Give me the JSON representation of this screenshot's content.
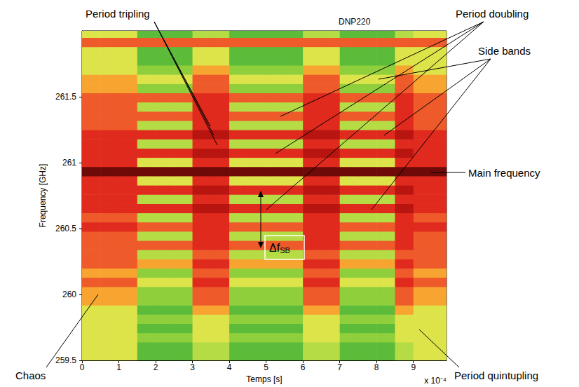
{
  "chart_data": {
    "type": "heatmap",
    "title": "DNP220",
    "x_label": "Temps [s]",
    "y_label": "Frequency [GHz]",
    "x_scale_label": "x 10⁻⁴",
    "xlim": [
      0,
      9.9
    ],
    "ylim": [
      259.5,
      262
    ],
    "xticks": [
      0,
      1,
      2,
      3,
      4,
      5,
      6,
      7,
      8,
      9
    ],
    "yticks": [
      259.5,
      260,
      260.5,
      261,
      261.5
    ],
    "grid": false,
    "x_bins": [
      0,
      0.5,
      1,
      1.5,
      2,
      2.5,
      3,
      3.5,
      4,
      4.5,
      5,
      5.5,
      6,
      6.5,
      7,
      7.5,
      8,
      8.5,
      9,
      9.5,
      10
    ],
    "y_bins": [
      259.5,
      259.57,
      259.64,
      259.71,
      259.78,
      259.85,
      259.92,
      259.99,
      260.06,
      260.13,
      260.2,
      260.27,
      260.34,
      260.41,
      260.48,
      260.55,
      260.62,
      260.69,
      260.76,
      260.83,
      260.9,
      260.97,
      261.04,
      261.11,
      261.18,
      261.25,
      261.32,
      261.39,
      261.46,
      261.53,
      261.6,
      261.67,
      261.74,
      261.81,
      261.88,
      261.95,
      262.02
    ],
    "cells": [
      [
        4,
        4,
        4,
        1,
        1,
        1,
        3,
        3,
        1,
        1,
        1,
        1,
        3,
        3,
        1,
        1,
        1,
        3,
        4,
        4
      ],
      [
        4,
        4,
        4,
        1,
        1,
        1,
        3,
        3,
        1,
        1,
        1,
        1,
        3,
        3,
        1,
        1,
        1,
        3,
        4,
        4
      ],
      [
        4,
        4,
        4,
        2,
        2,
        2,
        4,
        4,
        2,
        2,
        2,
        2,
        4,
        4,
        2,
        2,
        2,
        4,
        4,
        4
      ],
      [
        4,
        4,
        4,
        1,
        1,
        1,
        4,
        4,
        1,
        1,
        1,
        1,
        4,
        4,
        1,
        1,
        1,
        4,
        4,
        4
      ],
      [
        4,
        4,
        4,
        2,
        2,
        2,
        4,
        4,
        2,
        2,
        2,
        2,
        4,
        4,
        2,
        2,
        2,
        4,
        4,
        4
      ],
      [
        4,
        4,
        4,
        1,
        1,
        1,
        5,
        5,
        1,
        1,
        1,
        1,
        5,
        5,
        1,
        1,
        1,
        5,
        4,
        4
      ],
      [
        5,
        5,
        5,
        2,
        2,
        2,
        6,
        6,
        2,
        2,
        2,
        2,
        6,
        6,
        2,
        2,
        2,
        6,
        5,
        5
      ],
      [
        5,
        5,
        5,
        2,
        2,
        2,
        6,
        6,
        2,
        2,
        2,
        2,
        6,
        6,
        2,
        2,
        2,
        6,
        5,
        5
      ],
      [
        6,
        6,
        6,
        4,
        4,
        4,
        7,
        7,
        4,
        4,
        4,
        4,
        7,
        7,
        4,
        4,
        4,
        7,
        6,
        6
      ],
      [
        5,
        5,
        5,
        2,
        2,
        2,
        6,
        6,
        2,
        2,
        2,
        2,
        6,
        6,
        2,
        2,
        2,
        6,
        5,
        5
      ],
      [
        6,
        6,
        6,
        5,
        5,
        5,
        7,
        7,
        5,
        5,
        5,
        5,
        7,
        7,
        5,
        5,
        5,
        7,
        6,
        6
      ],
      [
        6,
        6,
        6,
        3,
        3,
        3,
        6,
        6,
        3,
        3,
        3,
        3,
        6,
        6,
        3,
        3,
        3,
        6,
        6,
        6
      ],
      [
        6,
        6,
        6,
        6,
        6,
        6,
        7,
        7,
        6,
        6,
        6,
        6,
        7,
        7,
        6,
        6,
        6,
        7,
        6,
        6
      ],
      [
        6,
        6,
        6,
        3,
        3,
        3,
        7,
        7,
        3,
        3,
        3,
        3,
        7,
        7,
        3,
        3,
        3,
        7,
        6,
        6
      ],
      [
        7,
        7,
        7,
        6,
        6,
        6,
        7,
        7,
        6,
        6,
        6,
        6,
        7,
        7,
        6,
        6,
        6,
        7,
        7,
        7
      ],
      [
        6,
        6,
        6,
        3,
        3,
        3,
        7,
        7,
        3,
        3,
        3,
        3,
        7,
        7,
        3,
        3,
        3,
        7,
        6,
        6
      ],
      [
        7,
        7,
        7,
        7,
        7,
        7,
        8,
        8,
        7,
        7,
        7,
        7,
        8,
        8,
        7,
        7,
        7,
        8,
        7,
        7
      ],
      [
        7,
        7,
        7,
        3,
        3,
        3,
        7,
        7,
        3,
        3,
        3,
        3,
        7,
        7,
        3,
        3,
        3,
        7,
        7,
        7
      ],
      [
        7,
        7,
        7,
        7,
        7,
        7,
        8,
        8,
        7,
        7,
        7,
        7,
        8,
        8,
        7,
        7,
        7,
        8,
        7,
        7
      ],
      [
        7,
        7,
        7,
        4,
        4,
        4,
        7,
        7,
        4,
        4,
        4,
        4,
        7,
        7,
        4,
        4,
        4,
        7,
        7,
        7
      ],
      [
        9,
        9,
        9,
        9,
        9,
        9,
        9,
        9,
        9,
        9,
        9,
        9,
        9,
        9,
        9,
        9,
        9,
        9,
        9,
        9
      ],
      [
        7,
        7,
        7,
        4,
        4,
        4,
        7,
        7,
        4,
        4,
        4,
        4,
        7,
        7,
        4,
        4,
        4,
        7,
        7,
        7
      ],
      [
        7,
        7,
        7,
        7,
        7,
        7,
        8,
        8,
        7,
        7,
        7,
        7,
        8,
        8,
        7,
        7,
        7,
        8,
        7,
        7
      ],
      [
        7,
        7,
        7,
        3,
        3,
        3,
        7,
        7,
        3,
        3,
        3,
        3,
        7,
        7,
        3,
        3,
        3,
        7,
        7,
        7
      ],
      [
        7,
        7,
        7,
        7,
        7,
        7,
        8,
        8,
        7,
        7,
        7,
        7,
        8,
        8,
        7,
        7,
        7,
        8,
        7,
        7
      ],
      [
        6,
        6,
        6,
        3,
        3,
        3,
        7,
        7,
        3,
        3,
        3,
        3,
        7,
        7,
        3,
        3,
        3,
        7,
        6,
        6
      ],
      [
        6,
        6,
        6,
        6,
        6,
        6,
        7,
        7,
        6,
        6,
        6,
        6,
        7,
        7,
        6,
        6,
        6,
        7,
        6,
        6
      ],
      [
        6,
        6,
        6,
        3,
        3,
        3,
        7,
        7,
        3,
        3,
        3,
        3,
        7,
        7,
        3,
        3,
        3,
        7,
        6,
        6
      ],
      [
        6,
        6,
        6,
        6,
        6,
        6,
        7,
        7,
        6,
        6,
        6,
        6,
        7,
        7,
        6,
        6,
        6,
        7,
        6,
        6
      ],
      [
        5,
        5,
        5,
        2,
        2,
        2,
        6,
        6,
        2,
        2,
        2,
        2,
        6,
        6,
        2,
        2,
        2,
        6,
        5,
        5
      ],
      [
        5,
        5,
        5,
        4,
        4,
        4,
        6,
        6,
        4,
        4,
        4,
        4,
        6,
        6,
        4,
        4,
        4,
        6,
        5,
        5
      ],
      [
        4,
        4,
        4,
        2,
        2,
        2,
        5,
        5,
        2,
        2,
        2,
        2,
        5,
        5,
        2,
        2,
        2,
        5,
        4,
        4
      ],
      [
        4,
        4,
        4,
        1,
        1,
        1,
        4,
        4,
        1,
        1,
        1,
        1,
        4,
        4,
        1,
        1,
        1,
        4,
        4,
        4
      ],
      [
        4,
        4,
        4,
        1,
        1,
        1,
        4,
        4,
        1,
        1,
        1,
        1,
        4,
        4,
        1,
        1,
        1,
        4,
        4,
        4
      ],
      [
        6,
        6,
        6,
        6,
        6,
        6,
        6,
        6,
        6,
        6,
        6,
        6,
        6,
        6,
        6,
        6,
        6,
        6,
        6,
        6
      ],
      [
        4,
        4,
        4,
        1,
        1,
        1,
        3,
        3,
        1,
        1,
        1,
        1,
        3,
        3,
        1,
        1,
        1,
        3,
        4,
        4
      ]
    ],
    "annotations": [
      {
        "text": "Period tripling"
      },
      {
        "text": "Period doubling"
      },
      {
        "text": "Side bands"
      },
      {
        "text": "Main frequency"
      },
      {
        "text": "Period quintupling"
      },
      {
        "text": "Chaos"
      },
      {
        "text": "Δf",
        "subscript": "SB"
      }
    ]
  }
}
